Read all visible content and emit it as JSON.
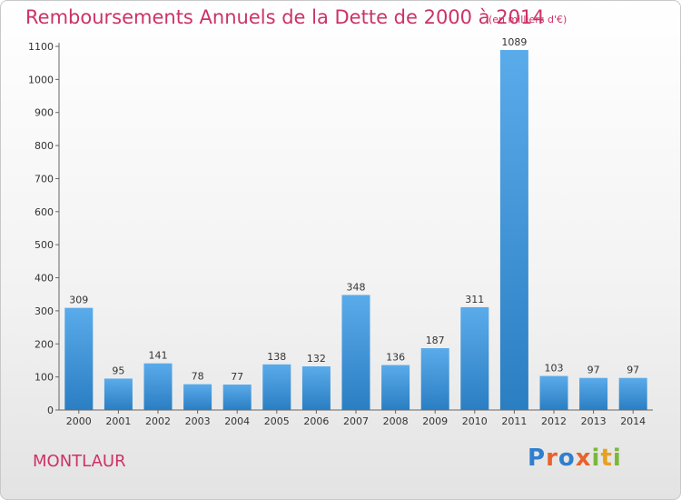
{
  "header": {
    "title": "Remboursements Annuels de la Dette de 2000 à 2014",
    "unit": "(en milliers d'€)"
  },
  "footer": {
    "commune": "MONTLAUR",
    "logo": "Proxiti"
  },
  "colors": {
    "title": "#cc3366",
    "bar_light": "#5aabea",
    "bar_dark": "#2a7ec2",
    "logo_letters": [
      "#2f7fcf",
      "#e8622c",
      "#2f7fcf",
      "#e8622c",
      "#7ab83a",
      "#e8a020",
      "#7ab83a"
    ]
  },
  "chart_data": {
    "type": "bar",
    "title": "Remboursements Annuels de la Dette de 2000 à 2014",
    "subtitle": "(en milliers d'€)",
    "xlabel": "",
    "ylabel": "",
    "categories": [
      "2000",
      "2001",
      "2002",
      "2003",
      "2004",
      "2005",
      "2006",
      "2007",
      "2008",
      "2009",
      "2010",
      "2011",
      "2012",
      "2013",
      "2014"
    ],
    "values": [
      309,
      95,
      141,
      78,
      77,
      138,
      132,
      348,
      136,
      187,
      311,
      1089,
      103,
      97,
      97
    ],
    "ylim": [
      0,
      1100
    ],
    "yticks": [
      0,
      100,
      200,
      300,
      400,
      500,
      600,
      700,
      800,
      900,
      1000,
      1100
    ],
    "grid": false,
    "data_labels": true
  }
}
